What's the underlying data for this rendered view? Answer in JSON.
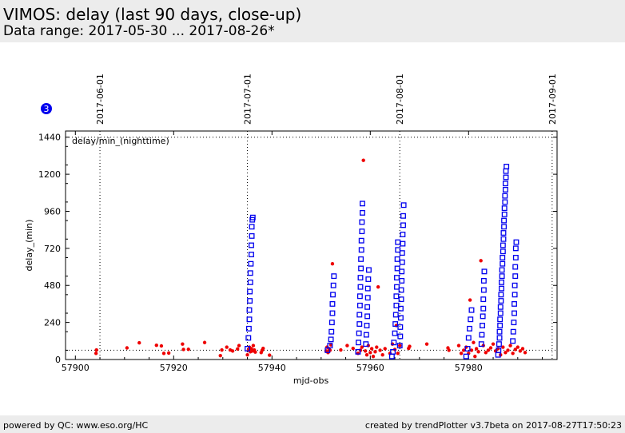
{
  "header": {
    "title": "VIMOS: delay (last 90 days, close-up)",
    "subtitle": "Data range: 2017-05-30 ... 2017-08-26*"
  },
  "footer": {
    "left": "powered by QC: www.eso.org/HC",
    "right": "created by trendPlotter v3.7beta on 2017-08-27T17:50:23"
  },
  "badge": {
    "text": "3",
    "color": "#0000ee"
  },
  "chart_data": {
    "type": "scatter",
    "title": "",
    "annotation": "delay/min_(nighttime)",
    "xlabel": "mjd-obs",
    "ylabel": "delay_(min)",
    "xlim": [
      57898,
      57998
    ],
    "ylim": [
      0,
      1480
    ],
    "xticks": [
      57900,
      57920,
      57940,
      57960,
      57980
    ],
    "yticks": [
      0,
      240,
      480,
      720,
      960,
      1200,
      1440
    ],
    "xtick_labels": [
      "57900",
      "57920",
      "57940",
      "57960",
      "57980"
    ],
    "ytick_labels": [
      "0",
      "240",
      "480",
      "720",
      "960",
      "1200",
      "1440"
    ],
    "date_markers": [
      {
        "label": "2017-06-01",
        "x": 57905.0
      },
      {
        "label": "2017-07-01",
        "x": 57935.0
      },
      {
        "label": "2017-08-01",
        "x": 57966.0
      },
      {
        "label": "2017-09-01",
        "x": 57997.0
      }
    ],
    "reference_lines": {
      "horizontal": [
        60,
        1440
      ]
    },
    "colors": {
      "red": "#ee0000",
      "blue": "#0000ee"
    },
    "series": [
      {
        "marker": "circle",
        "color": "#ee0000",
        "points": [
          [
            57904.2,
            40
          ],
          [
            57904.3,
            62
          ],
          [
            57910.5,
            75
          ],
          [
            57913.0,
            108
          ],
          [
            57916.5,
            92
          ],
          [
            57917.5,
            88
          ],
          [
            57918.0,
            40
          ],
          [
            57919.0,
            42
          ],
          [
            57921.8,
            100
          ],
          [
            57922.0,
            65
          ],
          [
            57923.0,
            66
          ],
          [
            57926.3,
            110
          ],
          [
            57929.5,
            25
          ],
          [
            57929.8,
            62
          ],
          [
            57930.8,
            80
          ],
          [
            57931.5,
            62
          ],
          [
            57932.0,
            55
          ],
          [
            57933.0,
            68
          ],
          [
            57933.3,
            90
          ],
          [
            57935.0,
            30
          ],
          [
            57935.2,
            60
          ],
          [
            57935.4,
            80
          ],
          [
            57935.6,
            50
          ],
          [
            57935.8,
            70
          ],
          [
            57936.0,
            55
          ],
          [
            57936.2,
            90
          ],
          [
            57936.4,
            62
          ],
          [
            57936.6,
            48
          ],
          [
            57937.8,
            45
          ],
          [
            57938.0,
            60
          ],
          [
            57938.2,
            72
          ],
          [
            57939.5,
            28
          ],
          [
            57951.0,
            55
          ],
          [
            57951.2,
            80
          ],
          [
            57951.4,
            45
          ],
          [
            57951.6,
            70
          ],
          [
            57951.8,
            60
          ],
          [
            57952.0,
            95
          ],
          [
            57952.3,
            620
          ],
          [
            57954.0,
            62
          ],
          [
            57955.3,
            90
          ],
          [
            57956.5,
            72
          ],
          [
            57957.5,
            40
          ],
          [
            57958.0,
            60
          ],
          [
            57958.3,
            80
          ],
          [
            57958.6,
            1290
          ],
          [
            57959.0,
            55
          ],
          [
            57959.3,
            30
          ],
          [
            57959.6,
            90
          ],
          [
            57960.0,
            45
          ],
          [
            57960.3,
            70
          ],
          [
            57960.6,
            20
          ],
          [
            57961.0,
            50
          ],
          [
            57961.3,
            80
          ],
          [
            57961.6,
            470
          ],
          [
            57962.0,
            60
          ],
          [
            57962.5,
            30
          ],
          [
            57963.0,
            70
          ],
          [
            57964.0,
            40
          ],
          [
            57964.5,
            100
          ],
          [
            57965.0,
            65
          ],
          [
            57965.3,
            220
          ],
          [
            57965.6,
            40
          ],
          [
            57966.0,
            90
          ],
          [
            57967.8,
            72
          ],
          [
            57968.0,
            85
          ],
          [
            57971.5,
            100
          ],
          [
            57975.8,
            75
          ],
          [
            57976.0,
            60
          ],
          [
            57978.0,
            90
          ],
          [
            57978.5,
            40
          ],
          [
            57979.0,
            60
          ],
          [
            57979.5,
            80
          ],
          [
            57980.0,
            40
          ],
          [
            57980.3,
            385
          ],
          [
            57980.6,
            60
          ],
          [
            57981.0,
            110
          ],
          [
            57981.3,
            20
          ],
          [
            57981.6,
            70
          ],
          [
            57982.0,
            50
          ],
          [
            57982.5,
            640
          ],
          [
            57983.0,
            90
          ],
          [
            57983.5,
            45
          ],
          [
            57984.0,
            60
          ],
          [
            57984.5,
            75
          ],
          [
            57985.0,
            100
          ],
          [
            57985.5,
            55
          ],
          [
            57986.0,
            70
          ],
          [
            57986.5,
            30
          ],
          [
            57987.0,
            80
          ],
          [
            57987.5,
            45
          ],
          [
            57988.0,
            60
          ],
          [
            57988.5,
            90
          ],
          [
            57989.0,
            40
          ],
          [
            57989.5,
            65
          ],
          [
            57990.0,
            80
          ],
          [
            57990.5,
            55
          ],
          [
            57991.0,
            70
          ],
          [
            57991.5,
            45
          ]
        ]
      },
      {
        "marker": "square",
        "color": "#0000ee",
        "points": [
          [
            57935.0,
            70
          ],
          [
            57935.2,
            140
          ],
          [
            57935.3,
            200
          ],
          [
            57935.4,
            260
          ],
          [
            57935.4,
            320
          ],
          [
            57935.5,
            380
          ],
          [
            57935.5,
            440
          ],
          [
            57935.6,
            500
          ],
          [
            57935.6,
            560
          ],
          [
            57935.7,
            620
          ],
          [
            57935.8,
            680
          ],
          [
            57935.8,
            740
          ],
          [
            57935.9,
            800
          ],
          [
            57935.9,
            860
          ],
          [
            57936.0,
            905
          ],
          [
            57936.1,
            920
          ],
          [
            57951.3,
            60
          ],
          [
            57951.8,
            90
          ],
          [
            57952.0,
            130
          ],
          [
            57952.1,
            180
          ],
          [
            57952.2,
            240
          ],
          [
            57952.3,
            300
          ],
          [
            57952.3,
            360
          ],
          [
            57952.4,
            420
          ],
          [
            57952.5,
            480
          ],
          [
            57952.6,
            540
          ],
          [
            57957.5,
            50
          ],
          [
            57957.6,
            110
          ],
          [
            57957.7,
            170
          ],
          [
            57957.8,
            230
          ],
          [
            57957.8,
            290
          ],
          [
            57957.9,
            350
          ],
          [
            57957.9,
            410
          ],
          [
            57958.0,
            470
          ],
          [
            57958.0,
            530
          ],
          [
            57958.1,
            590
          ],
          [
            57958.1,
            650
          ],
          [
            57958.2,
            710
          ],
          [
            57958.2,
            770
          ],
          [
            57958.3,
            830
          ],
          [
            57958.3,
            890
          ],
          [
            57958.4,
            950
          ],
          [
            57958.4,
            1010
          ],
          [
            57959.1,
            100
          ],
          [
            57959.2,
            160
          ],
          [
            57959.3,
            220
          ],
          [
            57959.4,
            280
          ],
          [
            57959.4,
            340
          ],
          [
            57959.5,
            400
          ],
          [
            57959.5,
            460
          ],
          [
            57959.6,
            520
          ],
          [
            57959.7,
            580
          ],
          [
            57964.4,
            20
          ],
          [
            57964.6,
            50
          ],
          [
            57964.8,
            110
          ],
          [
            57965.0,
            170
          ],
          [
            57965.1,
            230
          ],
          [
            57965.2,
            290
          ],
          [
            57965.3,
            350
          ],
          [
            57965.3,
            410
          ],
          [
            57965.4,
            470
          ],
          [
            57965.4,
            530
          ],
          [
            57965.5,
            590
          ],
          [
            57965.5,
            650
          ],
          [
            57965.6,
            710
          ],
          [
            57965.6,
            760
          ],
          [
            57966.0,
            90
          ],
          [
            57966.1,
            150
          ],
          [
            57966.1,
            210
          ],
          [
            57966.2,
            270
          ],
          [
            57966.2,
            330
          ],
          [
            57966.3,
            390
          ],
          [
            57966.3,
            450
          ],
          [
            57966.4,
            510
          ],
          [
            57966.4,
            570
          ],
          [
            57966.5,
            630
          ],
          [
            57966.5,
            690
          ],
          [
            57966.6,
            750
          ],
          [
            57966.6,
            810
          ],
          [
            57966.7,
            870
          ],
          [
            57966.7,
            930
          ],
          [
            57966.8,
            1000
          ],
          [
            57979.5,
            20
          ],
          [
            57979.8,
            70
          ],
          [
            57980.0,
            140
          ],
          [
            57980.2,
            200
          ],
          [
            57980.4,
            260
          ],
          [
            57980.6,
            320
          ],
          [
            57982.6,
            100
          ],
          [
            57982.7,
            160
          ],
          [
            57982.8,
            220
          ],
          [
            57982.9,
            280
          ],
          [
            57983.0,
            330
          ],
          [
            57983.0,
            390
          ],
          [
            57983.1,
            450
          ],
          [
            57983.1,
            510
          ],
          [
            57983.2,
            570
          ],
          [
            57986.0,
            30
          ],
          [
            57986.1,
            60
          ],
          [
            57986.2,
            100
          ],
          [
            57986.3,
            140
          ],
          [
            57986.3,
            180
          ],
          [
            57986.4,
            220
          ],
          [
            57986.4,
            260
          ],
          [
            57986.5,
            300
          ],
          [
            57986.5,
            340
          ],
          [
            57986.6,
            380
          ],
          [
            57986.6,
            420
          ],
          [
            57986.7,
            460
          ],
          [
            57986.7,
            500
          ],
          [
            57986.8,
            540
          ],
          [
            57986.8,
            580
          ],
          [
            57986.9,
            620
          ],
          [
            57986.9,
            660
          ],
          [
            57987.0,
            700
          ],
          [
            57987.0,
            740
          ],
          [
            57987.1,
            780
          ],
          [
            57987.1,
            820
          ],
          [
            57987.2,
            860
          ],
          [
            57987.2,
            900
          ],
          [
            57987.3,
            940
          ],
          [
            57987.3,
            980
          ],
          [
            57987.4,
            1020
          ],
          [
            57987.4,
            1060
          ],
          [
            57987.5,
            1100
          ],
          [
            57987.5,
            1140
          ],
          [
            57987.6,
            1180
          ],
          [
            57987.6,
            1220
          ],
          [
            57987.7,
            1250
          ],
          [
            57989.0,
            120
          ],
          [
            57989.1,
            180
          ],
          [
            57989.2,
            240
          ],
          [
            57989.3,
            300
          ],
          [
            57989.3,
            360
          ],
          [
            57989.4,
            420
          ],
          [
            57989.4,
            480
          ],
          [
            57989.5,
            540
          ],
          [
            57989.5,
            600
          ],
          [
            57989.6,
            660
          ],
          [
            57989.6,
            720
          ],
          [
            57989.7,
            760
          ]
        ]
      }
    ]
  }
}
